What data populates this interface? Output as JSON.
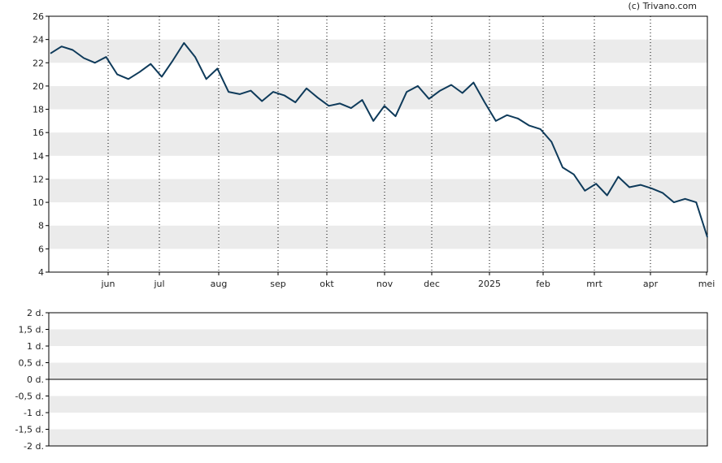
{
  "credit": "(c) Trivano.com",
  "colors": {
    "line": "#0e3a5a",
    "band": "#ebebeb",
    "axis": "#000000",
    "background": "#ffffff"
  },
  "chart_data": [
    {
      "type": "line",
      "title": "",
      "xlabel": "",
      "ylabel": "",
      "grid": "horizontal alternating bands, dotted vertical month lines",
      "legend": "none",
      "ylim": [
        4,
        26
      ],
      "y_ticks": [
        "4",
        "6",
        "8",
        "10",
        "12",
        "14",
        "16",
        "18",
        "20",
        "22",
        "24",
        "26"
      ],
      "x_ticks": [
        "jun",
        "jul",
        "aug",
        "sep",
        "okt",
        "nov",
        "dec",
        "2025",
        "feb",
        "mrt",
        "apr",
        "mei"
      ],
      "x": [
        "mei",
        "mei",
        "mei",
        "mei",
        "mei",
        "jun",
        "jun",
        "jun",
        "jun",
        "jul",
        "jul",
        "jul",
        "jul",
        "jul",
        "jul",
        "jul",
        "aug",
        "aug",
        "aug",
        "aug",
        "aug",
        "sep",
        "sep",
        "sep",
        "sep",
        "okt",
        "okt",
        "okt",
        "okt",
        "okt",
        "nov",
        "nov",
        "nov",
        "nov",
        "nov",
        "dec",
        "dec",
        "dec",
        "dec",
        "dec",
        "2025",
        "2025",
        "2025",
        "2025",
        "feb",
        "feb",
        "feb",
        "feb",
        "mrt",
        "mrt",
        "mrt",
        "mrt",
        "mrt",
        "apr",
        "apr",
        "apr",
        "apr",
        "apr",
        "mei",
        "mei"
      ],
      "values": [
        22.8,
        23.4,
        23.1,
        22.4,
        22.0,
        22.5,
        21.0,
        20.6,
        21.2,
        21.9,
        20.8,
        22.2,
        23.7,
        22.5,
        20.6,
        21.5,
        19.5,
        19.3,
        19.6,
        18.7,
        19.5,
        19.2,
        18.6,
        19.8,
        19.0,
        18.3,
        18.5,
        18.1,
        18.8,
        17.0,
        18.3,
        17.4,
        19.5,
        20.0,
        18.9,
        19.6,
        20.1,
        19.4,
        20.3,
        18.6,
        17.0,
        17.5,
        17.2,
        16.6,
        16.3,
        15.2,
        13.0,
        12.4,
        11.0,
        11.6,
        10.6,
        12.2,
        11.3,
        11.5,
        11.2,
        10.8,
        10.0,
        10.3,
        10.0,
        7.0
      ]
    },
    {
      "type": "line",
      "title": "",
      "xlabel": "",
      "ylabel": "",
      "grid": "horizontal alternating bands",
      "legend": "none",
      "ylim": [
        -2,
        2
      ],
      "y_ticks": [
        "2 d.",
        "1,5 d.",
        "1 d.",
        "0,5 d.",
        "0 d.",
        "-0,5 d.",
        "-1 d.",
        "-1,5 d.",
        "-2 d."
      ],
      "x_ticks": [],
      "values": []
    }
  ]
}
